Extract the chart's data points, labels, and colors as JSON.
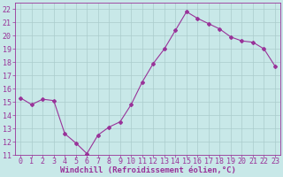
{
  "x": [
    0,
    1,
    2,
    3,
    4,
    5,
    6,
    7,
    8,
    9,
    10,
    11,
    12,
    13,
    14,
    15,
    16,
    17,
    18,
    19,
    20,
    21,
    22,
    23
  ],
  "y": [
    15.3,
    14.8,
    15.2,
    15.1,
    12.6,
    11.9,
    11.1,
    12.5,
    13.1,
    13.5,
    14.8,
    16.5,
    17.9,
    19.0,
    20.4,
    21.8,
    21.3,
    20.9,
    20.5,
    19.9,
    19.6,
    19.5,
    19.0,
    17.7
  ],
  "line_color": "#993399",
  "marker": "D",
  "marker_size": 2,
  "bg_color": "#c8e8e8",
  "grid_color": "#aacccc",
  "xlabel": "Windchill (Refroidissement éolien,°C)",
  "tick_color": "#993399",
  "ylim": [
    11,
    22.5
  ],
  "yticks": [
    11,
    12,
    13,
    14,
    15,
    16,
    17,
    18,
    19,
    20,
    21,
    22
  ],
  "xlim": [
    -0.5,
    23.5
  ],
  "xticks": [
    0,
    1,
    2,
    3,
    4,
    5,
    6,
    7,
    8,
    9,
    10,
    11,
    12,
    13,
    14,
    15,
    16,
    17,
    18,
    19,
    20,
    21,
    22,
    23
  ],
  "tick_fontsize": 6,
  "xlabel_fontsize": 6.5,
  "lw": 0.8
}
